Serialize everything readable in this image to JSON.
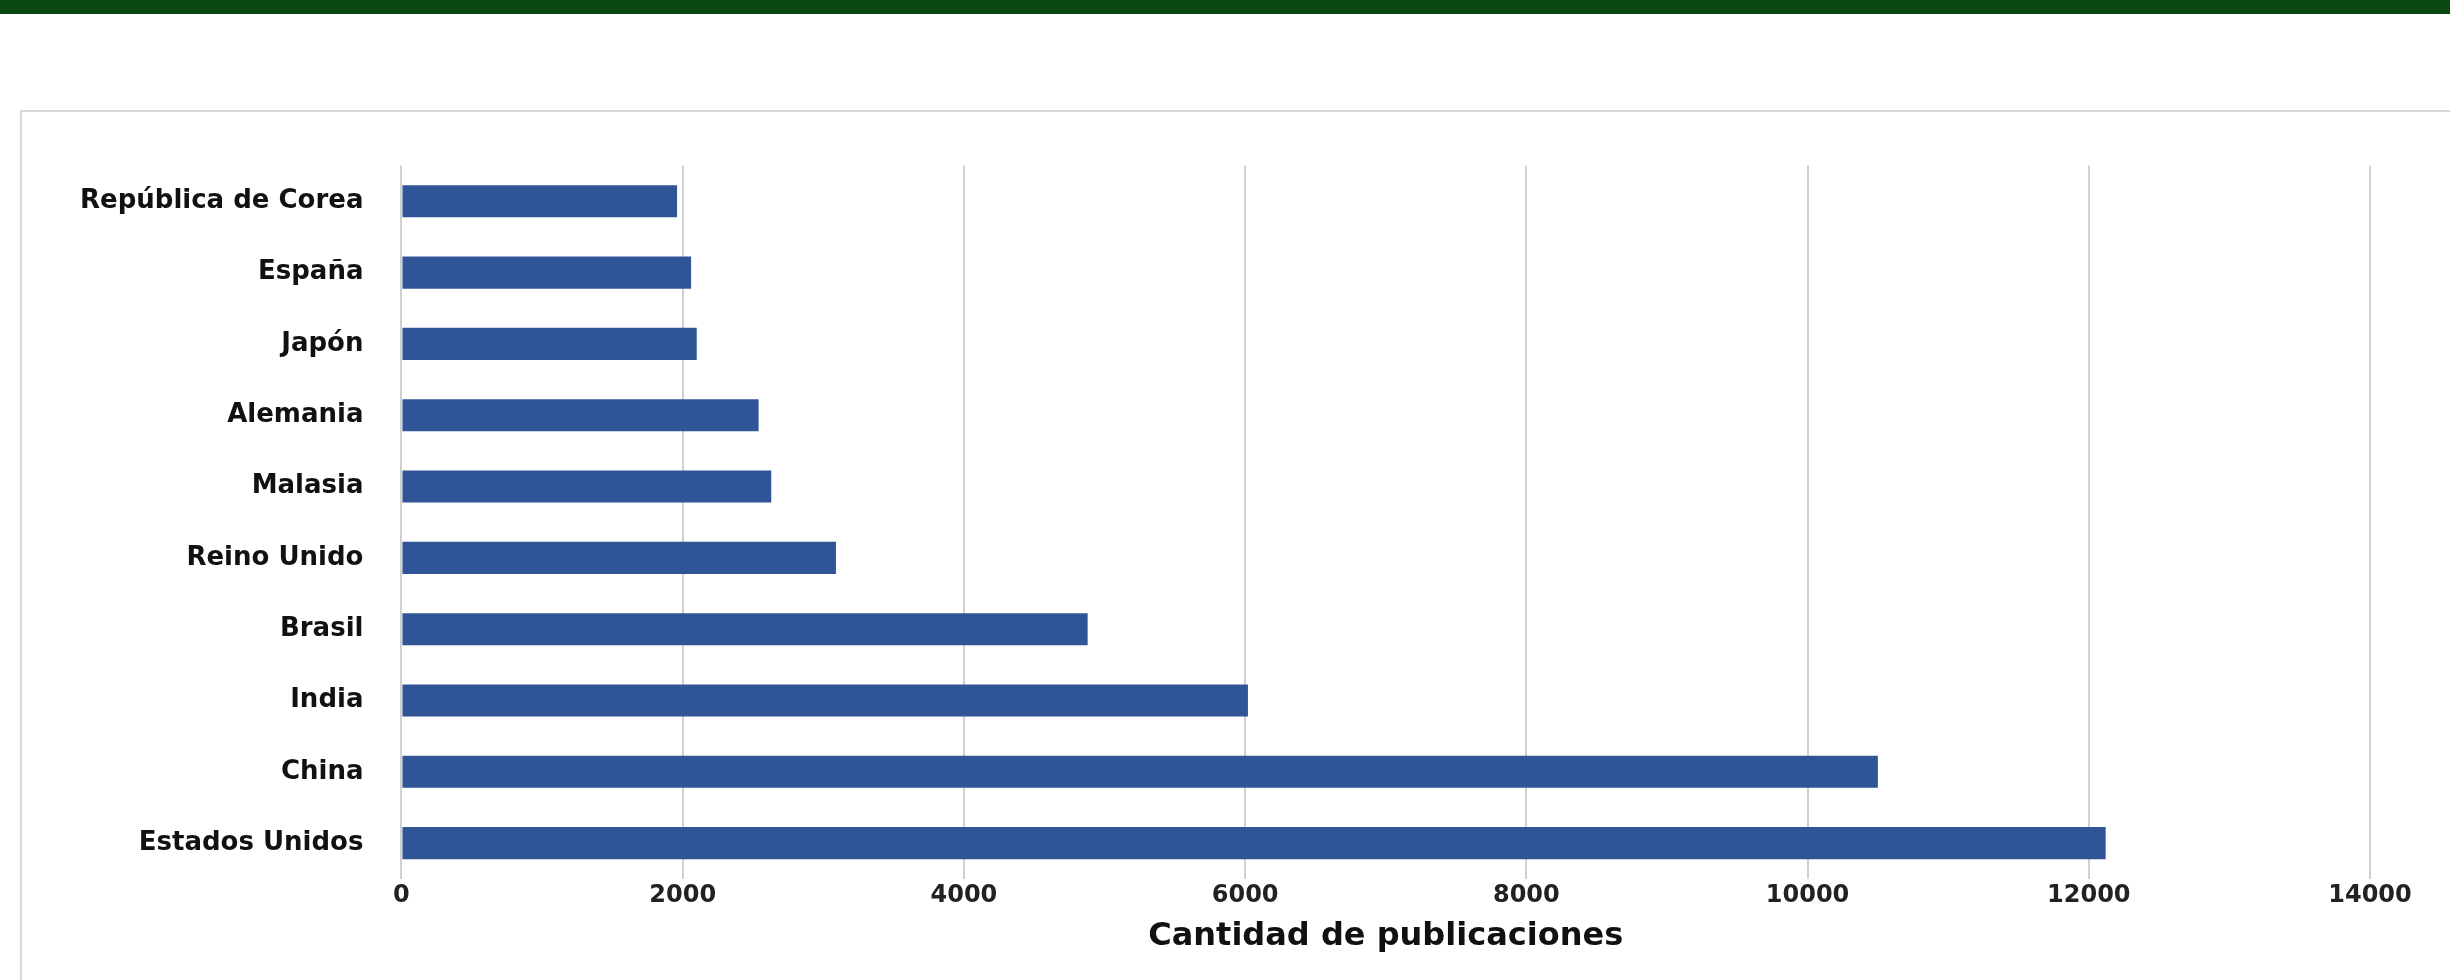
{
  "chart_data": {
    "type": "bar",
    "orientation": "horizontal",
    "xlabel": "Cantidad de publicaciones",
    "categories": [
      "República de Corea",
      "España",
      "Japón",
      "Alemania",
      "Malasia",
      "Reino Unido",
      "Brasil",
      "India",
      "China",
      "Estados Unidos"
    ],
    "values": [
      1960,
      2060,
      2100,
      2540,
      2630,
      3090,
      4880,
      6020,
      10500,
      12120
    ],
    "color": "#2f5597",
    "xlim": [
      0,
      14000
    ],
    "xticks": [
      0,
      2000,
      4000,
      6000,
      8000,
      10000,
      12000,
      14000
    ],
    "grid": "x",
    "legend": false
  }
}
